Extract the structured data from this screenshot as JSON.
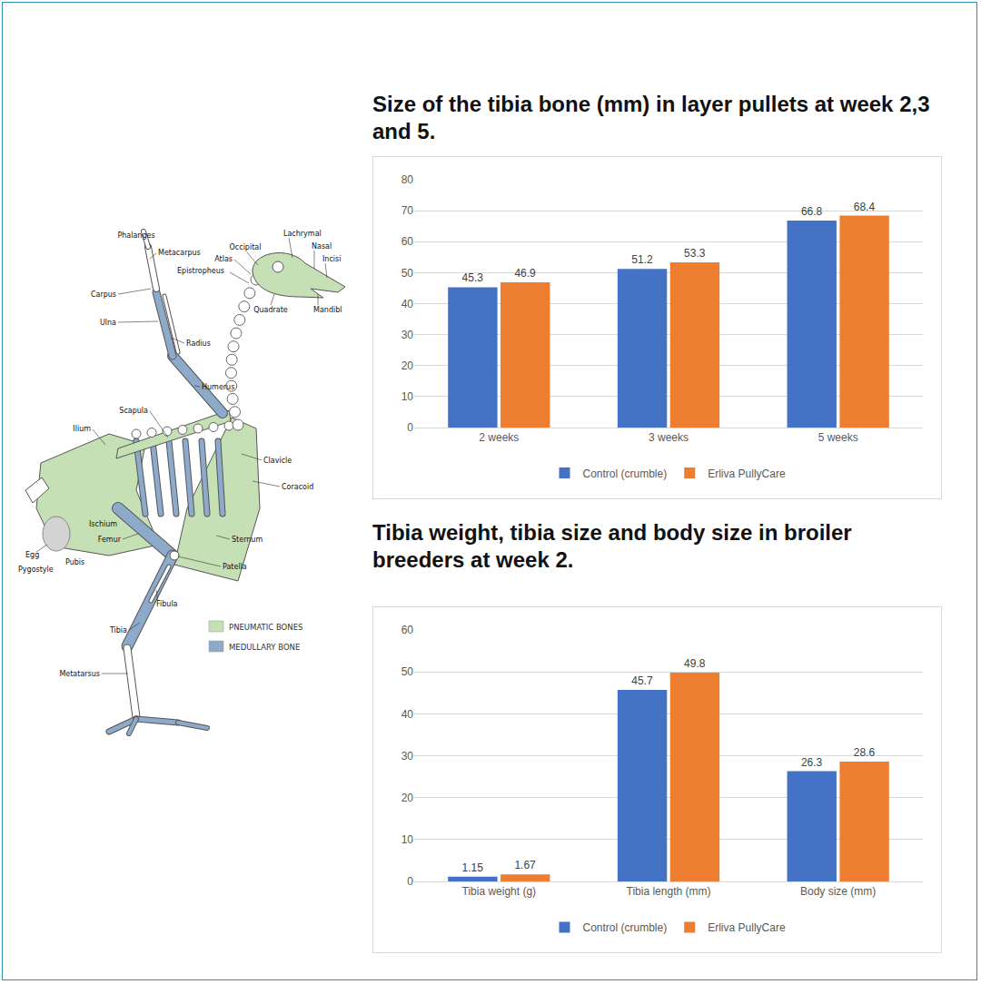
{
  "diagram": {
    "labels": [
      "Phalanges",
      "Metacarpus",
      "Carpus",
      "Ulna",
      "Radius",
      "Humerus",
      "Scapula",
      "Ilium",
      "Ischium",
      "Egg",
      "Pygostyle",
      "Pubis",
      "Femur",
      "Patella",
      "Fibula",
      "Tibia",
      "Metatarsus",
      "Occipital",
      "Atlas",
      "Lachrymal",
      "Nasal",
      "Incisi",
      "Epistropheus",
      "Quadrate",
      "Mandibl",
      "Clavicle",
      "Coracoid",
      "Sternum"
    ],
    "legend": [
      {
        "label": "PNEUMATIC BONES",
        "color": "#c5e0b4"
      },
      {
        "label": "MEDULLARY BONE",
        "color": "#8eaacb"
      }
    ]
  },
  "chart_data": [
    {
      "type": "bar",
      "title": "Size of the tibia bone (mm) in layer pullets at week 2,3 and 5.",
      "categories": [
        "2 weeks",
        "3 weeks",
        "5 weeks"
      ],
      "series": [
        {
          "name": "Control (crumble)",
          "color": "#4472c4",
          "values": [
            45.3,
            51.2,
            66.8
          ]
        },
        {
          "name": "Erliva PullyCare",
          "color": "#ed7d31",
          "values": [
            46.9,
            53.3,
            68.4
          ]
        }
      ],
      "ylim": [
        0,
        80
      ],
      "yticks": [
        0,
        10,
        20,
        30,
        40,
        50,
        60,
        70,
        80
      ],
      "grid": true,
      "data_labels": true,
      "legend": "bottom"
    },
    {
      "type": "bar",
      "title": "Tibia weight, tibia size and body size in broiler breeders at week 2.",
      "categories": [
        "Tibia weight (g)",
        "Tibia length (mm)",
        "Body size (mm)"
      ],
      "series": [
        {
          "name": "Control (crumble)",
          "color": "#4472c4",
          "values": [
            1.15,
            45.7,
            26.3
          ]
        },
        {
          "name": "Erliva PullyCare",
          "color": "#ed7d31",
          "values": [
            1.67,
            49.8,
            28.6
          ]
        }
      ],
      "ylim": [
        0,
        60
      ],
      "yticks": [
        0,
        10,
        20,
        30,
        40,
        50,
        60
      ],
      "grid": true,
      "data_labels": true,
      "legend": "bottom"
    }
  ]
}
